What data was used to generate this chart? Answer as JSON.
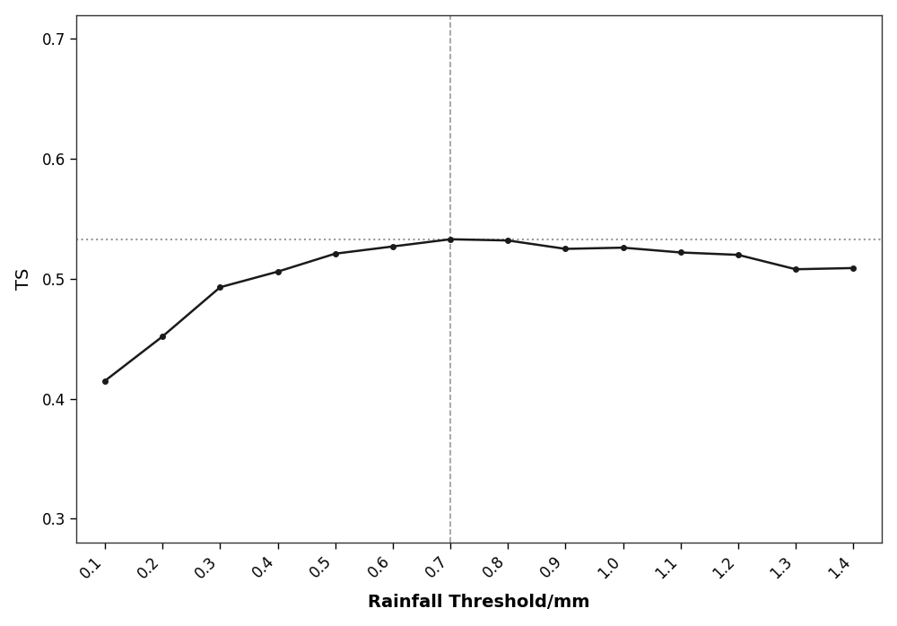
{
  "x": [
    0.1,
    0.2,
    0.3,
    0.4,
    0.5,
    0.6,
    0.7,
    0.8,
    0.9,
    1.0,
    1.1,
    1.2,
    1.3,
    1.4
  ],
  "y": [
    0.415,
    0.452,
    0.493,
    0.506,
    0.521,
    0.527,
    0.533,
    0.532,
    0.525,
    0.526,
    0.522,
    0.52,
    0.508,
    0.509
  ],
  "xlabel": "Rainfall Threshold/mm",
  "ylabel": "TS",
  "xlim": [
    0.05,
    1.45
  ],
  "ylim": [
    0.28,
    0.72
  ],
  "yticks": [
    0.3,
    0.4,
    0.5,
    0.6,
    0.7
  ],
  "xtick_labels": [
    "0.1",
    "0.2",
    "0.3",
    "0.4",
    "0.5",
    "0.6",
    "0.7",
    "0.8",
    "0.9",
    "1.0",
    "1.1",
    "1.2",
    "1.3",
    "1.4"
  ],
  "vline_x": 0.7,
  "hline_y": 0.533,
  "line_color": "#1a1a1a",
  "dashed_color": "#999999",
  "dotted_color": "#999999",
  "marker": "o",
  "marker_size": 4,
  "line_width": 1.8,
  "background_color": "#ffffff",
  "label_fontsize": 14,
  "tick_fontsize": 12
}
